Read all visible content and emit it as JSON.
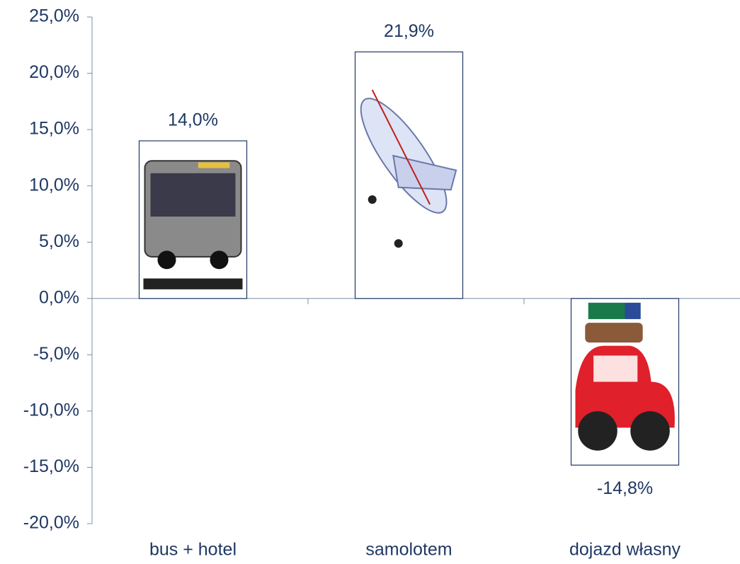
{
  "chart_data": {
    "type": "bar",
    "categories": [
      "bus + hotel",
      "samolotem",
      "dojazd własny"
    ],
    "values": [
      14.0,
      21.9,
      -14.8
    ],
    "value_labels": [
      "14,0%",
      "21,9%",
      "-14,8%"
    ],
    "color": "#ffffff",
    "ylim": [
      -20,
      25
    ],
    "yticks": [
      {
        "value": -20,
        "label": "-20,0%"
      },
      {
        "value": -15,
        "label": "-15,0%"
      },
      {
        "value": -10,
        "label": "-10,0%"
      },
      {
        "value": -5,
        "label": "-5,0%"
      },
      {
        "value": 0,
        "label": "0,0%"
      },
      {
        "value": 5,
        "label": "5,0%"
      },
      {
        "value": 10,
        "label": "10,0%"
      },
      {
        "value": 15,
        "label": "15,0%"
      },
      {
        "value": 20,
        "label": "20,0%"
      },
      {
        "value": 25,
        "label": "25,0%"
      }
    ],
    "grid": false
  }
}
